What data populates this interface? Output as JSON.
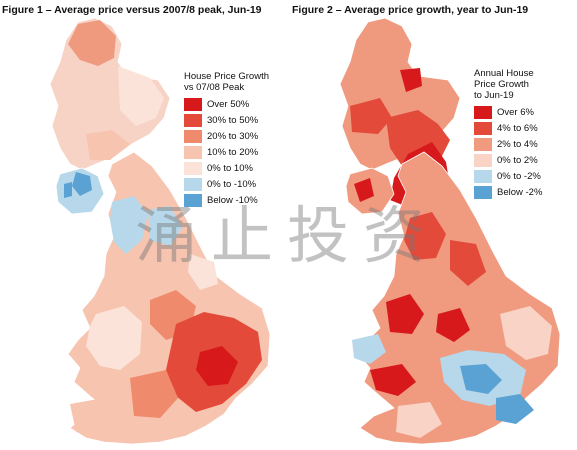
{
  "figure1": {
    "title": "Figure 1 – Average price versus 2007/8 peak, Jun-19",
    "legend_title": [
      "House Price Growth",
      "vs 07/08 Peak"
    ],
    "legend": [
      {
        "label": "Over 50%",
        "color": "#d7191c"
      },
      {
        "label": "30% to 50%",
        "color": "#e34a3a"
      },
      {
        "label": "20% to 30%",
        "color": "#ef8a6c"
      },
      {
        "label": "10% to 20%",
        "color": "#f7c4b0"
      },
      {
        "label": "0% to 10%",
        "color": "#fbe3da"
      },
      {
        "label": "0% to -10%",
        "color": "#b6d8ea"
      },
      {
        "label": "Below -10%",
        "color": "#5aa2d3"
      }
    ]
  },
  "figure2": {
    "title": "Figure 2 – Average price growth, year to Jun-19",
    "legend_title": [
      "Annual House",
      "Price Growth",
      "to Jun-19"
    ],
    "legend": [
      {
        "label": "Over 6%",
        "color": "#d7191c"
      },
      {
        "label": "4% to 6%",
        "color": "#e34a3a"
      },
      {
        "label": "2% to 4%",
        "color": "#f09a80"
      },
      {
        "label": "0% to 2%",
        "color": "#f8d3c6"
      },
      {
        "label": "0% to -2%",
        "color": "#b6d8ea"
      },
      {
        "label": "Below -2%",
        "color": "#5aa2d3"
      }
    ]
  },
  "watermark": "涌止投资"
}
